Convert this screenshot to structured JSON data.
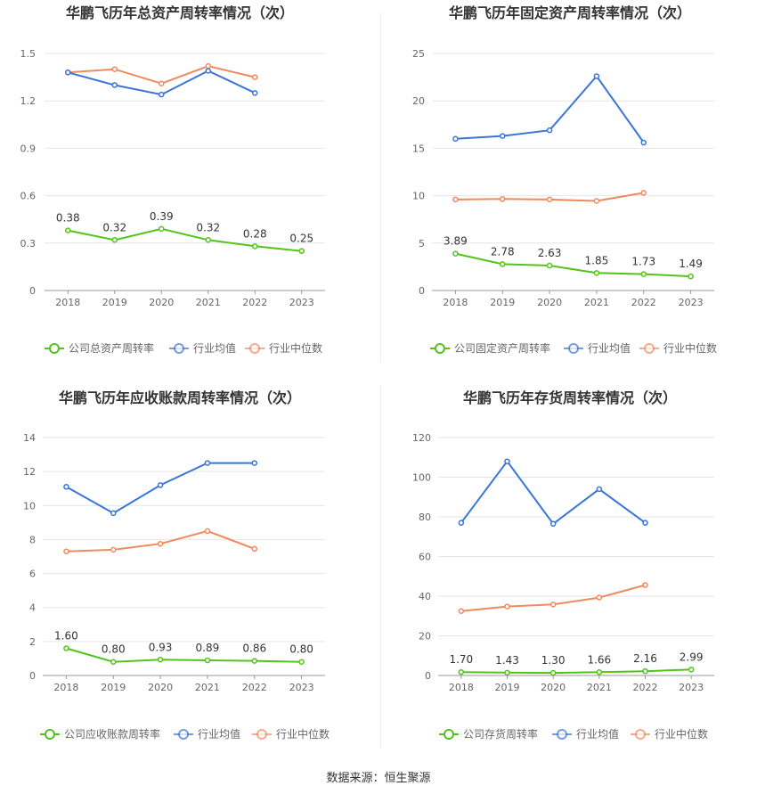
{
  "colors": {
    "company": "#52c41a",
    "industry_avg": "#3a75d8",
    "industry_median": "#f08a5d",
    "grid": "#e6e6e6",
    "axis": "#666666",
    "text": "#333333"
  },
  "legend": {
    "industry_avg": "行业均值",
    "industry_median": "行业中位数"
  },
  "source": "数据来源：恒生聚源",
  "chart_data": [
    {
      "type": "line",
      "title": "华鹏飞历年总资产周转率情况（次）",
      "categories": [
        "2018",
        "2019",
        "2020",
        "2021",
        "2022",
        "2023"
      ],
      "ylim": [
        0,
        1.5
      ],
      "yticks": [
        "0",
        "0.3",
        "0.6",
        "0.9",
        "1.2",
        "1.5"
      ],
      "ytick_values": [
        0,
        0.3,
        0.6,
        0.9,
        1.2,
        1.5
      ],
      "grid": true,
      "legend_position": "bottom",
      "series": [
        {
          "name": "公司总资产周转率",
          "key": "company",
          "values": [
            0.38,
            0.32,
            0.39,
            0.32,
            0.28,
            0.25
          ],
          "labels": [
            "0.38",
            "0.32",
            "0.39",
            "0.32",
            "0.28",
            "0.25"
          ]
        },
        {
          "name": "行业均值",
          "key": "industry_avg",
          "values": [
            1.38,
            1.3,
            1.24,
            1.39,
            1.25,
            null
          ]
        },
        {
          "name": "行业中位数",
          "key": "industry_median",
          "values": [
            1.38,
            1.4,
            1.31,
            1.42,
            1.35,
            null
          ]
        }
      ]
    },
    {
      "type": "line",
      "title": "华鹏飞历年固定资产周转率情况（次）",
      "categories": [
        "2018",
        "2019",
        "2020",
        "2021",
        "2022",
        "2023"
      ],
      "ylim": [
        0,
        25
      ],
      "yticks": [
        "0",
        "5",
        "10",
        "15",
        "20",
        "25"
      ],
      "ytick_values": [
        0,
        5,
        10,
        15,
        20,
        25
      ],
      "grid": true,
      "legend_position": "bottom",
      "series": [
        {
          "name": "公司固定资产周转率",
          "key": "company",
          "values": [
            3.89,
            2.78,
            2.63,
            1.85,
            1.73,
            1.49
          ],
          "labels": [
            "3.89",
            "2.78",
            "2.63",
            "1.85",
            "1.73",
            "1.49"
          ]
        },
        {
          "name": "行业均值",
          "key": "industry_avg",
          "values": [
            16.0,
            16.3,
            16.9,
            22.6,
            15.6,
            null
          ]
        },
        {
          "name": "行业中位数",
          "key": "industry_median",
          "values": [
            9.6,
            9.65,
            9.6,
            9.45,
            10.3,
            null
          ]
        }
      ]
    },
    {
      "type": "line",
      "title": "华鹏飞历年应收账款周转率情况（次）",
      "categories": [
        "2018",
        "2019",
        "2020",
        "2021",
        "2022",
        "2023"
      ],
      "ylim": [
        0,
        14
      ],
      "yticks": [
        "0",
        "2",
        "4",
        "6",
        "8",
        "10",
        "12",
        "14"
      ],
      "ytick_values": [
        0,
        2,
        4,
        6,
        8,
        10,
        12,
        14
      ],
      "grid": true,
      "legend_position": "bottom",
      "series": [
        {
          "name": "公司应收账款周转率",
          "key": "company",
          "values": [
            1.6,
            0.8,
            0.93,
            0.89,
            0.86,
            0.8
          ],
          "labels": [
            "1.60",
            "0.80",
            "0.93",
            "0.89",
            "0.86",
            "0.80"
          ]
        },
        {
          "name": "行业均值",
          "key": "industry_avg",
          "values": [
            11.1,
            9.55,
            11.2,
            12.5,
            12.5,
            null
          ]
        },
        {
          "name": "行业中位数",
          "key": "industry_median",
          "values": [
            7.3,
            7.4,
            7.75,
            8.5,
            7.45,
            null
          ]
        }
      ]
    },
    {
      "type": "line",
      "title": "华鹏飞历年存货周转率情况（次）",
      "categories": [
        "2018",
        "2019",
        "2020",
        "2021",
        "2022",
        "2023"
      ],
      "ylim": [
        0,
        120
      ],
      "yticks": [
        "0",
        "20",
        "40",
        "60",
        "80",
        "100",
        "120"
      ],
      "ytick_values": [
        0,
        20,
        40,
        60,
        80,
        100,
        120
      ],
      "grid": true,
      "legend_position": "bottom",
      "series": [
        {
          "name": "公司存货周转率",
          "key": "company",
          "values": [
            1.7,
            1.43,
            1.3,
            1.66,
            2.16,
            2.99
          ],
          "labels": [
            "1.70",
            "1.43",
            "1.30",
            "1.66",
            "2.16",
            "2.99"
          ]
        },
        {
          "name": "行业均值",
          "key": "industry_avg",
          "values": [
            77.0,
            108.0,
            76.5,
            94.0,
            77.0,
            null
          ]
        },
        {
          "name": "行业中位数",
          "key": "industry_median",
          "values": [
            32.5,
            34.8,
            35.8,
            39.3,
            45.6,
            null
          ]
        }
      ]
    }
  ]
}
